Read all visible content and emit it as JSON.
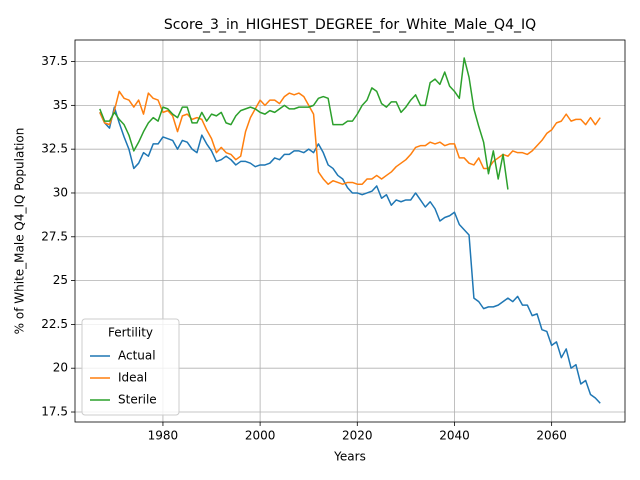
{
  "chart_data": {
    "type": "line",
    "title": "Score_3_in_HIGHEST_DEGREE_for_White_Male_Q4_IQ",
    "x_label": "Years",
    "y_label": "% of White_Male Q4_IQ Population",
    "x": [
      1967,
      1968,
      1969,
      1970,
      1971,
      1972,
      1973,
      1974,
      1975,
      1976,
      1977,
      1978,
      1979,
      1980,
      1981,
      1982,
      1983,
      1984,
      1985,
      1986,
      1987,
      1988,
      1989,
      1990,
      1991,
      1992,
      1993,
      1994,
      1995,
      1996,
      1997,
      1998,
      1999,
      2000,
      2001,
      2002,
      2003,
      2004,
      2005,
      2006,
      2007,
      2008,
      2009,
      2010,
      2011,
      2012,
      2013,
      2014,
      2015,
      2016,
      2017,
      2018,
      2019,
      2020,
      2021,
      2022,
      2023,
      2024,
      2025,
      2026,
      2027,
      2028,
      2029,
      2030,
      2031,
      2032,
      2033,
      2034,
      2035,
      2036,
      2037,
      2038,
      2039,
      2040,
      2041,
      2042,
      2043,
      2044,
      2045,
      2046,
      2047,
      2048,
      2049,
      2050,
      2051,
      2052,
      2053,
      2054,
      2055,
      2056,
      2057,
      2058,
      2059,
      2060,
      2061,
      2062,
      2063,
      2064,
      2065,
      2066,
      2067,
      2068,
      2069,
      2070
    ],
    "series": [
      {
        "name": "Actual",
        "color": "#1f77b4",
        "values": [
          34.6,
          34.0,
          33.7,
          34.9,
          34.0,
          33.2,
          32.5,
          31.4,
          31.7,
          32.3,
          32.1,
          32.8,
          32.8,
          33.2,
          33.1,
          33.0,
          32.5,
          33.0,
          32.9,
          32.5,
          32.3,
          33.3,
          32.8,
          32.4,
          31.8,
          31.9,
          32.1,
          31.9,
          31.6,
          31.8,
          31.8,
          31.7,
          31.5,
          31.6,
          31.6,
          31.7,
          32.0,
          31.9,
          32.2,
          32.2,
          32.4,
          32.4,
          32.3,
          32.5,
          32.3,
          32.8,
          32.3,
          31.6,
          31.4,
          31.0,
          30.8,
          30.3,
          30.0,
          30.0,
          29.9,
          30.0,
          30.1,
          30.4,
          29.7,
          29.9,
          29.3,
          29.6,
          29.5,
          29.6,
          29.6,
          30.0,
          29.6,
          29.2,
          29.5,
          29.1,
          28.4,
          28.6,
          28.7,
          28.9,
          28.2,
          27.9,
          27.6,
          24.0,
          23.8,
          23.4,
          23.5,
          23.5,
          23.6,
          23.8,
          24.0,
          23.8,
          24.1,
          23.6,
          23.6,
          23.0,
          23.1,
          22.2,
          22.1,
          21.3,
          21.5,
          20.6,
          21.1,
          20.0,
          20.2,
          19.1,
          19.3,
          18.5,
          18.3,
          18.0
        ]
      },
      {
        "name": "Ideal",
        "color": "#ff7f0e",
        "values": [
          34.6,
          34.0,
          33.9,
          34.7,
          35.8,
          35.4,
          35.3,
          34.9,
          35.3,
          34.5,
          35.7,
          35.4,
          35.3,
          34.6,
          34.7,
          34.4,
          33.5,
          34.4,
          34.5,
          34.2,
          34.3,
          34.2,
          33.6,
          33.1,
          32.3,
          32.6,
          32.3,
          32.2,
          31.9,
          32.1,
          33.5,
          34.3,
          34.8,
          35.3,
          35.0,
          35.3,
          35.3,
          35.1,
          35.5,
          35.7,
          35.6,
          35.7,
          35.5,
          35.0,
          34.5,
          31.2,
          30.8,
          30.5,
          30.7,
          30.6,
          30.5,
          30.6,
          30.6,
          30.5,
          30.5,
          30.8,
          30.8,
          31.0,
          30.8,
          31.0,
          31.2,
          31.5,
          31.7,
          31.9,
          32.2,
          32.6,
          32.7,
          32.7,
          32.9,
          32.8,
          32.9,
          32.7,
          32.8,
          32.8,
          32.0,
          32.0,
          31.7,
          31.6,
          32.0,
          31.4,
          31.4,
          31.8,
          32.0,
          32.2,
          32.1,
          32.4,
          32.3,
          32.3,
          32.2,
          32.4,
          32.7,
          33.0,
          33.4,
          33.6,
          34.0,
          34.1,
          34.5,
          34.1,
          34.2,
          34.2,
          33.9,
          34.3,
          33.9,
          34.3
        ]
      },
      {
        "name": "Sterile",
        "color": "#2ca02c",
        "values": [
          34.8,
          34.1,
          34.1,
          34.6,
          34.2,
          33.9,
          33.3,
          32.4,
          32.9,
          33.5,
          34.0,
          34.3,
          34.1,
          34.9,
          34.8,
          34.5,
          34.3,
          34.9,
          34.9,
          34.0,
          34.0,
          34.6,
          34.1,
          34.5,
          34.4,
          34.6,
          34.0,
          33.9,
          34.4,
          34.7,
          34.8,
          34.9,
          34.8,
          34.6,
          34.5,
          34.7,
          34.6,
          34.8,
          35.0,
          34.8,
          34.8,
          34.9,
          34.9,
          34.9,
          35.0,
          35.4,
          35.5,
          35.4,
          33.9,
          33.9,
          33.9,
          34.1,
          34.1,
          34.5,
          35.0,
          35.3,
          36.0,
          35.8,
          35.1,
          34.9,
          35.2,
          35.2,
          34.6,
          34.9,
          35.3,
          35.6,
          35.0,
          35.0,
          36.3,
          36.5,
          36.2,
          36.9,
          36.1,
          35.8,
          35.4,
          37.7,
          36.6,
          34.8,
          33.8,
          32.9,
          31.1,
          32.4,
          30.8,
          32.2,
          30.2,
          null,
          null,
          null,
          null,
          null,
          null,
          null,
          null,
          null,
          null,
          null,
          null,
          null,
          null,
          null,
          null,
          null,
          null,
          null
        ]
      }
    ],
    "xlim": [
      1961.9,
      2075.1
    ],
    "ylim": [
      16.93,
      38.73
    ],
    "xticks": [
      1980,
      2000,
      2020,
      2040,
      2060
    ],
    "yticks": [
      17.5,
      20.0,
      22.5,
      25.0,
      27.5,
      30.0,
      32.5,
      35.0,
      37.5
    ],
    "grid": true,
    "legend": {
      "title": "Fertility",
      "loc": "lower left"
    }
  }
}
